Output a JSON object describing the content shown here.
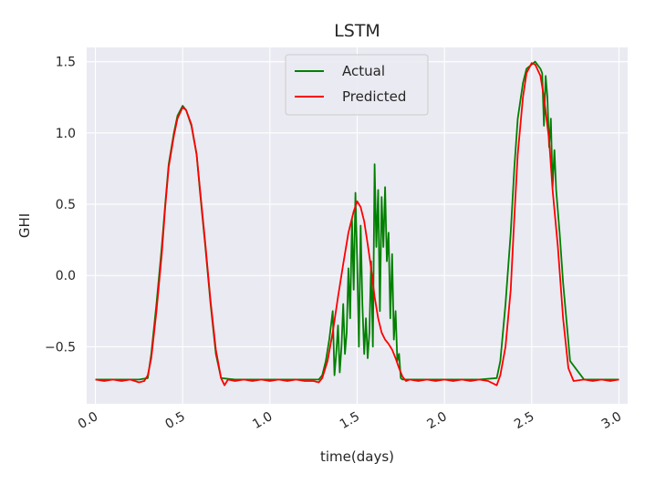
{
  "chart_data": {
    "type": "line",
    "title": "LSTM",
    "xlabel": "time(days)",
    "ylabel": "GHI",
    "xlim": [
      -0.05,
      3.05
    ],
    "ylim": [
      -0.9,
      1.6
    ],
    "xticks": [
      0.0,
      0.5,
      1.0,
      1.5,
      2.0,
      2.5,
      3.0
    ],
    "xtick_labels": [
      "0.0",
      "0.5",
      "1.0",
      "1.5",
      "2.0",
      "2.5",
      "3.0"
    ],
    "yticks": [
      -0.5,
      0.0,
      0.5,
      1.0,
      1.5
    ],
    "ytick_labels": [
      "−0.5",
      "0.0",
      "0.5",
      "1.0",
      "1.5"
    ],
    "grid": true,
    "legend_position": "top-center",
    "series": [
      {
        "name": "Actual",
        "color": "#008000",
        "x": [
          0.0,
          0.1,
          0.2,
          0.25,
          0.3,
          0.32,
          0.35,
          0.38,
          0.4,
          0.42,
          0.45,
          0.47,
          0.5,
          0.52,
          0.55,
          0.58,
          0.6,
          0.63,
          0.66,
          0.69,
          0.72,
          0.8,
          0.9,
          1.0,
          1.1,
          1.2,
          1.28,
          1.3,
          1.32,
          1.34,
          1.36,
          1.37,
          1.38,
          1.39,
          1.4,
          1.41,
          1.42,
          1.43,
          1.44,
          1.45,
          1.46,
          1.47,
          1.48,
          1.49,
          1.5,
          1.51,
          1.52,
          1.53,
          1.54,
          1.55,
          1.56,
          1.57,
          1.58,
          1.59,
          1.6,
          1.61,
          1.62,
          1.63,
          1.64,
          1.65,
          1.66,
          1.67,
          1.68,
          1.69,
          1.7,
          1.71,
          1.72,
          1.73,
          1.74,
          1.75,
          1.76,
          1.78,
          1.8,
          1.9,
          2.0,
          2.1,
          2.2,
          2.3,
          2.32,
          2.35,
          2.38,
          2.4,
          2.42,
          2.45,
          2.47,
          2.5,
          2.52,
          2.55,
          2.56,
          2.57,
          2.58,
          2.59,
          2.6,
          2.61,
          2.62,
          2.63,
          2.64,
          2.66,
          2.68,
          2.72,
          2.8,
          2.9,
          3.0
        ],
        "y": [
          -0.73,
          -0.73,
          -0.73,
          -0.73,
          -0.72,
          -0.55,
          -0.2,
          0.2,
          0.5,
          0.78,
          1.0,
          1.12,
          1.19,
          1.16,
          1.05,
          0.85,
          0.58,
          0.2,
          -0.2,
          -0.55,
          -0.72,
          -0.73,
          -0.73,
          -0.73,
          -0.73,
          -0.73,
          -0.73,
          -0.7,
          -0.6,
          -0.45,
          -0.25,
          -0.7,
          -0.55,
          -0.35,
          -0.68,
          -0.5,
          -0.2,
          -0.55,
          -0.4,
          0.05,
          -0.3,
          0.4,
          -0.1,
          0.58,
          0.1,
          -0.5,
          0.35,
          -0.2,
          -0.55,
          -0.3,
          -0.58,
          -0.4,
          0.1,
          -0.5,
          0.78,
          0.2,
          0.6,
          -0.25,
          0.55,
          0.2,
          0.62,
          0.1,
          0.3,
          -0.3,
          0.15,
          -0.45,
          -0.25,
          -0.6,
          -0.55,
          -0.72,
          -0.73,
          -0.73,
          -0.73,
          -0.73,
          -0.73,
          -0.73,
          -0.73,
          -0.72,
          -0.6,
          -0.2,
          0.3,
          0.75,
          1.1,
          1.35,
          1.45,
          1.48,
          1.5,
          1.45,
          1.42,
          1.05,
          1.4,
          1.25,
          0.9,
          1.1,
          0.62,
          0.88,
          0.6,
          0.3,
          -0.05,
          -0.6,
          -0.73,
          -0.73,
          -0.73
        ]
      },
      {
        "name": "Predicted",
        "color": "#ff0000",
        "x": [
          0.0,
          0.05,
          0.1,
          0.15,
          0.2,
          0.25,
          0.28,
          0.3,
          0.32,
          0.35,
          0.38,
          0.4,
          0.42,
          0.45,
          0.47,
          0.5,
          0.52,
          0.55,
          0.58,
          0.6,
          0.63,
          0.66,
          0.69,
          0.72,
          0.74,
          0.76,
          0.8,
          0.85,
          0.9,
          0.95,
          1.0,
          1.05,
          1.1,
          1.15,
          1.2,
          1.25,
          1.28,
          1.3,
          1.33,
          1.36,
          1.39,
          1.42,
          1.45,
          1.48,
          1.5,
          1.52,
          1.54,
          1.56,
          1.58,
          1.6,
          1.62,
          1.64,
          1.66,
          1.68,
          1.7,
          1.72,
          1.74,
          1.76,
          1.78,
          1.8,
          1.85,
          1.9,
          1.95,
          2.0,
          2.05,
          2.1,
          2.15,
          2.2,
          2.25,
          2.3,
          2.32,
          2.35,
          2.38,
          2.4,
          2.42,
          2.45,
          2.47,
          2.5,
          2.52,
          2.55,
          2.57,
          2.6,
          2.62,
          2.65,
          2.68,
          2.71,
          2.74,
          2.8,
          2.85,
          2.9,
          2.95,
          3.0
        ],
        "y": [
          -0.73,
          -0.74,
          -0.73,
          -0.74,
          -0.73,
          -0.75,
          -0.74,
          -0.7,
          -0.58,
          -0.25,
          0.15,
          0.48,
          0.76,
          0.98,
          1.1,
          1.18,
          1.16,
          1.06,
          0.85,
          0.6,
          0.22,
          -0.18,
          -0.52,
          -0.72,
          -0.77,
          -0.73,
          -0.74,
          -0.73,
          -0.74,
          -0.73,
          -0.74,
          -0.73,
          -0.74,
          -0.73,
          -0.74,
          -0.74,
          -0.75,
          -0.72,
          -0.6,
          -0.4,
          -0.15,
          0.08,
          0.3,
          0.45,
          0.52,
          0.48,
          0.38,
          0.22,
          0.05,
          -0.15,
          -0.3,
          -0.4,
          -0.45,
          -0.48,
          -0.52,
          -0.58,
          -0.65,
          -0.71,
          -0.74,
          -0.73,
          -0.74,
          -0.73,
          -0.74,
          -0.73,
          -0.74,
          -0.73,
          -0.74,
          -0.73,
          -0.74,
          -0.77,
          -0.7,
          -0.5,
          -0.1,
          0.4,
          0.85,
          1.25,
          1.42,
          1.49,
          1.48,
          1.4,
          1.25,
          0.95,
          0.6,
          0.2,
          -0.3,
          -0.65,
          -0.74,
          -0.73,
          -0.74,
          -0.73,
          -0.74,
          -0.73
        ]
      }
    ]
  }
}
